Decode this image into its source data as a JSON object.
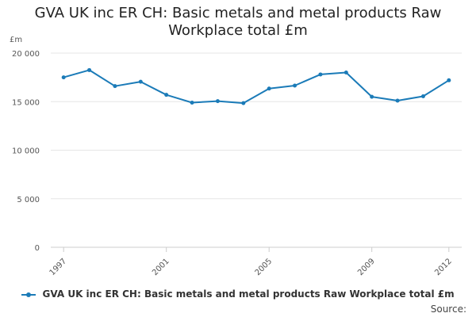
{
  "chart_data": {
    "type": "line",
    "title_lines": [
      "GVA UK inc ER CH: Basic metals and metal products Raw",
      "Workplace total £m"
    ],
    "y_unit": "£m",
    "x": [
      1997,
      1998,
      1999,
      2000,
      2001,
      2002,
      2003,
      2004,
      2005,
      2006,
      2007,
      2008,
      2009,
      2010,
      2011,
      2012
    ],
    "x_tick_labels": [
      "1997",
      "2001",
      "2005",
      "2009",
      "2012"
    ],
    "x_tick_values": [
      1997,
      2001,
      2005,
      2009,
      2012
    ],
    "y_tick_labels": [
      "0",
      "5 000",
      "10 000",
      "15 000",
      "20 000"
    ],
    "y_tick_values": [
      0,
      5000,
      10000,
      15000,
      20000
    ],
    "ylim": [
      0,
      20000
    ],
    "grid": true,
    "legend_position": "bottom",
    "series": [
      {
        "name": "GVA UK inc ER CH: Basic metals and metal products Raw Workplace total £m",
        "color": "#1b7bb8",
        "values": [
          17500,
          18250,
          16600,
          17050,
          15700,
          14900,
          15050,
          14850,
          16350,
          16650,
          17800,
          18000,
          15500,
          15100,
          15550,
          17200
        ]
      }
    ]
  },
  "source_label": "Source:"
}
